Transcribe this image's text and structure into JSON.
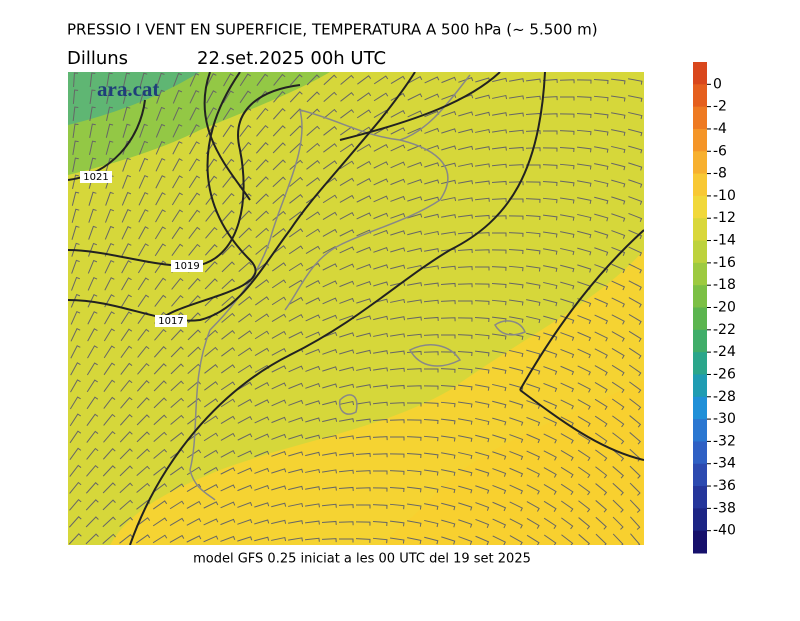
{
  "header": {
    "title": "PRESSIO I VENT EN SUPERFICIE, TEMPERATURA A 500 hPa (~ 5.500 m)",
    "day": "Dilluns",
    "date": "22.set.2025 00h UTC"
  },
  "logo": "ara.cat",
  "isobar_labels": [
    "1021",
    "1019",
    "1017"
  ],
  "footer": "model GFS 0.25 iniciat a les 00 UTC del 19 set 2025",
  "colorbar": {
    "ticks": [
      0,
      -2,
      -4,
      -6,
      -8,
      -10,
      -12,
      -14,
      -16,
      -18,
      -20,
      -22,
      -24,
      -26,
      -28,
      -30,
      -32,
      -34,
      -36,
      -38,
      -40
    ],
    "colors": [
      "#d9471c",
      "#e55f1e",
      "#ee7a22",
      "#f49528",
      "#f7b02f",
      "#f8c834",
      "#f1d83a",
      "#d9d73a",
      "#bdd23c",
      "#9dca40",
      "#7cc045",
      "#5cb54f",
      "#40ad69",
      "#2ba68b",
      "#1f9cb2",
      "#2090d8",
      "#2a77d1",
      "#2f60c4",
      "#2c4ab0",
      "#25369b",
      "#1d2585",
      "#16106b"
    ]
  }
}
